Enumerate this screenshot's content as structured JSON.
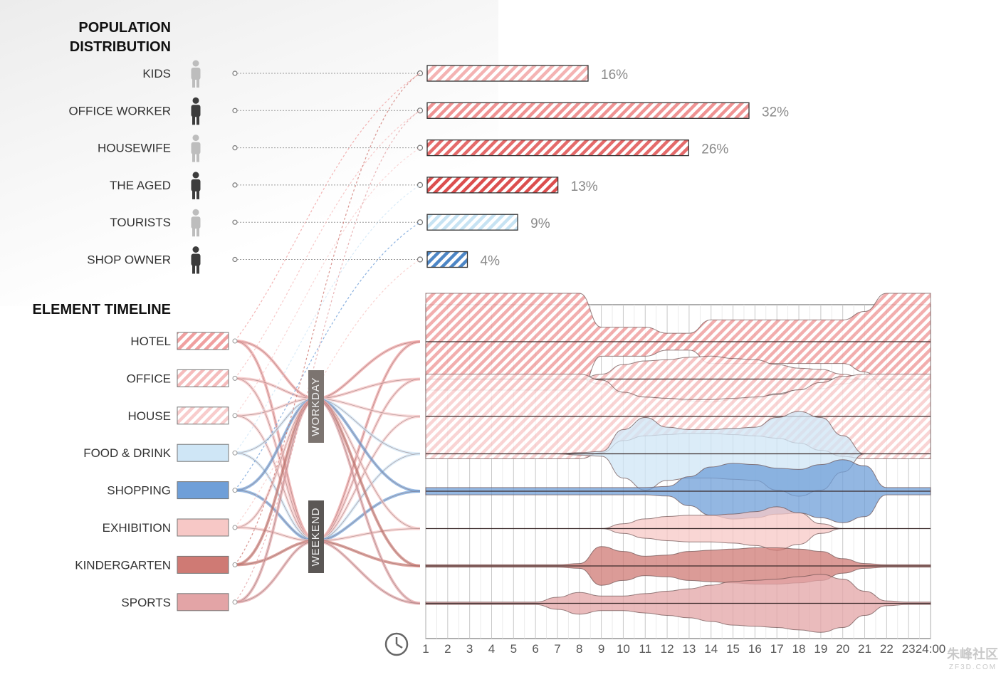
{
  "population": {
    "title_line1": "POPULATION",
    "title_line2": "DISTRIBUTION",
    "items": [
      {
        "label": "KIDS",
        "value": 16,
        "display": "16%",
        "color": "#f4b3b3",
        "icon": "child-person-icon"
      },
      {
        "label": "OFFICE WORKER",
        "value": 32,
        "display": "32%",
        "color": "#ef9393",
        "icon": "man-in-suit-icon"
      },
      {
        "label": "HOUSEWIFE",
        "value": 26,
        "display": "26%",
        "color": "#e46a6a",
        "icon": "woman-person-icon"
      },
      {
        "label": "THE AGED",
        "value": 13,
        "display": "13%",
        "color": "#dc4e4e",
        "icon": "elderly-person-icon"
      },
      {
        "label": "TOURISTS",
        "value": 9,
        "display": "9%",
        "color": "#c7e3f3",
        "icon": "tourist-person-icon"
      },
      {
        "label": "SHOP OWNER",
        "value": 4,
        "display": "4%",
        "color": "#4d86c6",
        "icon": "shop-owner-person-icon"
      }
    ]
  },
  "timeline": {
    "title": "ELEMENT TIMELINE",
    "workday_label": "WORKDAY",
    "weekend_label": "WEEKEND",
    "clock_icon": "clock-icon",
    "elements": [
      {
        "label": "HOTEL",
        "color": "#f0a0a0",
        "hatch": true
      },
      {
        "label": "OFFICE",
        "color": "#f5bcbc",
        "hatch": true
      },
      {
        "label": "HOUSE",
        "color": "#f8cccc",
        "hatch": true
      },
      {
        "label": "FOOD & DRINK",
        "color": "#cfe6f6",
        "hatch": false
      },
      {
        "label": "SHOPPING",
        "color": "#6f9fd8",
        "hatch": false
      },
      {
        "label": "EXHIBITION",
        "color": "#f7c8c6",
        "hatch": false
      },
      {
        "label": "KINDERGARTEN",
        "color": "#cf7a74",
        "hatch": false
      },
      {
        "label": "SPORTS",
        "color": "#e3a4a6",
        "hatch": false
      }
    ]
  },
  "chart_data": {
    "type": "area",
    "title": "ELEMENT TIMELINE",
    "xlabel": "",
    "x": [
      "1",
      "2",
      "3",
      "4",
      "5",
      "6",
      "7",
      "8",
      "9",
      "10",
      "11",
      "12",
      "13",
      "14",
      "15",
      "16",
      "17",
      "18",
      "19",
      "20",
      "21",
      "22",
      "23",
      "24:00"
    ],
    "xlim": [
      0,
      23
    ],
    "grid": true,
    "series": [
      {
        "name": "HOTEL",
        "values": [
          4.0,
          4.0,
          4.0,
          4.0,
          4.0,
          4.0,
          4.0,
          4.0,
          1.2,
          1.2,
          1.2,
          0.7,
          0.7,
          1.8,
          1.8,
          1.8,
          1.8,
          1.8,
          1.8,
          1.8,
          2.5,
          4.0,
          4.0,
          4.0
        ]
      },
      {
        "name": "OFFICE",
        "values": [
          0.0,
          0.0,
          0.0,
          0.0,
          0.0,
          0.0,
          0.0,
          0.0,
          0.4,
          1.2,
          1.5,
          1.6,
          1.8,
          1.9,
          1.7,
          1.6,
          1.2,
          0.9,
          0.8,
          0.4,
          0.0,
          0.0,
          0.0,
          0.0
        ]
      },
      {
        "name": "HOUSE",
        "values": [
          3.5,
          3.5,
          3.5,
          3.5,
          3.5,
          3.5,
          3.5,
          3.5,
          3.0,
          2.0,
          1.6,
          1.5,
          1.4,
          1.4,
          1.5,
          1.6,
          1.8,
          2.2,
          2.8,
          3.3,
          3.5,
          3.5,
          3.5,
          3.5
        ]
      },
      {
        "name": "FOOD & DRINK",
        "values": [
          0.0,
          0.0,
          0.0,
          0.0,
          0.0,
          0.0,
          0.0,
          0.1,
          0.2,
          2.0,
          3.0,
          2.2,
          2.0,
          2.0,
          2.1,
          2.2,
          3.0,
          3.5,
          3.0,
          1.5,
          0.0,
          0.0,
          0.0,
          0.0
        ]
      },
      {
        "name": "SHOPPING",
        "values": [
          0.3,
          0.3,
          0.3,
          0.3,
          0.3,
          0.3,
          0.3,
          0.3,
          0.3,
          0.3,
          0.3,
          0.4,
          1.2,
          2.0,
          2.3,
          2.2,
          1.9,
          1.8,
          2.2,
          2.6,
          2.1,
          0.3,
          0.3,
          0.3
        ]
      },
      {
        "name": "EXHIBITION",
        "values": [
          0.0,
          0.0,
          0.0,
          0.0,
          0.0,
          0.0,
          0.0,
          0.0,
          0.0,
          0.4,
          0.8,
          1.0,
          1.1,
          1.1,
          1.2,
          1.4,
          1.8,
          1.3,
          0.4,
          0.0,
          0.0,
          0.0,
          0.0,
          0.0
        ]
      },
      {
        "name": "KINDERGARTEN",
        "values": [
          0.1,
          0.1,
          0.1,
          0.1,
          0.1,
          0.1,
          0.1,
          0.2,
          1.6,
          1.2,
          0.8,
          0.9,
          1.2,
          1.3,
          1.4,
          1.5,
          1.5,
          1.4,
          1.2,
          0.6,
          0.2,
          0.1,
          0.1,
          0.1
        ]
      },
      {
        "name": "SPORTS",
        "values": [
          0.1,
          0.1,
          0.1,
          0.1,
          0.1,
          0.1,
          0.5,
          0.9,
          0.6,
          0.6,
          0.8,
          1.0,
          1.2,
          1.5,
          1.8,
          1.9,
          2.0,
          2.2,
          2.4,
          2.0,
          1.0,
          0.2,
          0.1,
          0.1
        ]
      }
    ]
  },
  "watermark": {
    "text": "朱峰社区",
    "sub": "ZF3D.COM"
  }
}
